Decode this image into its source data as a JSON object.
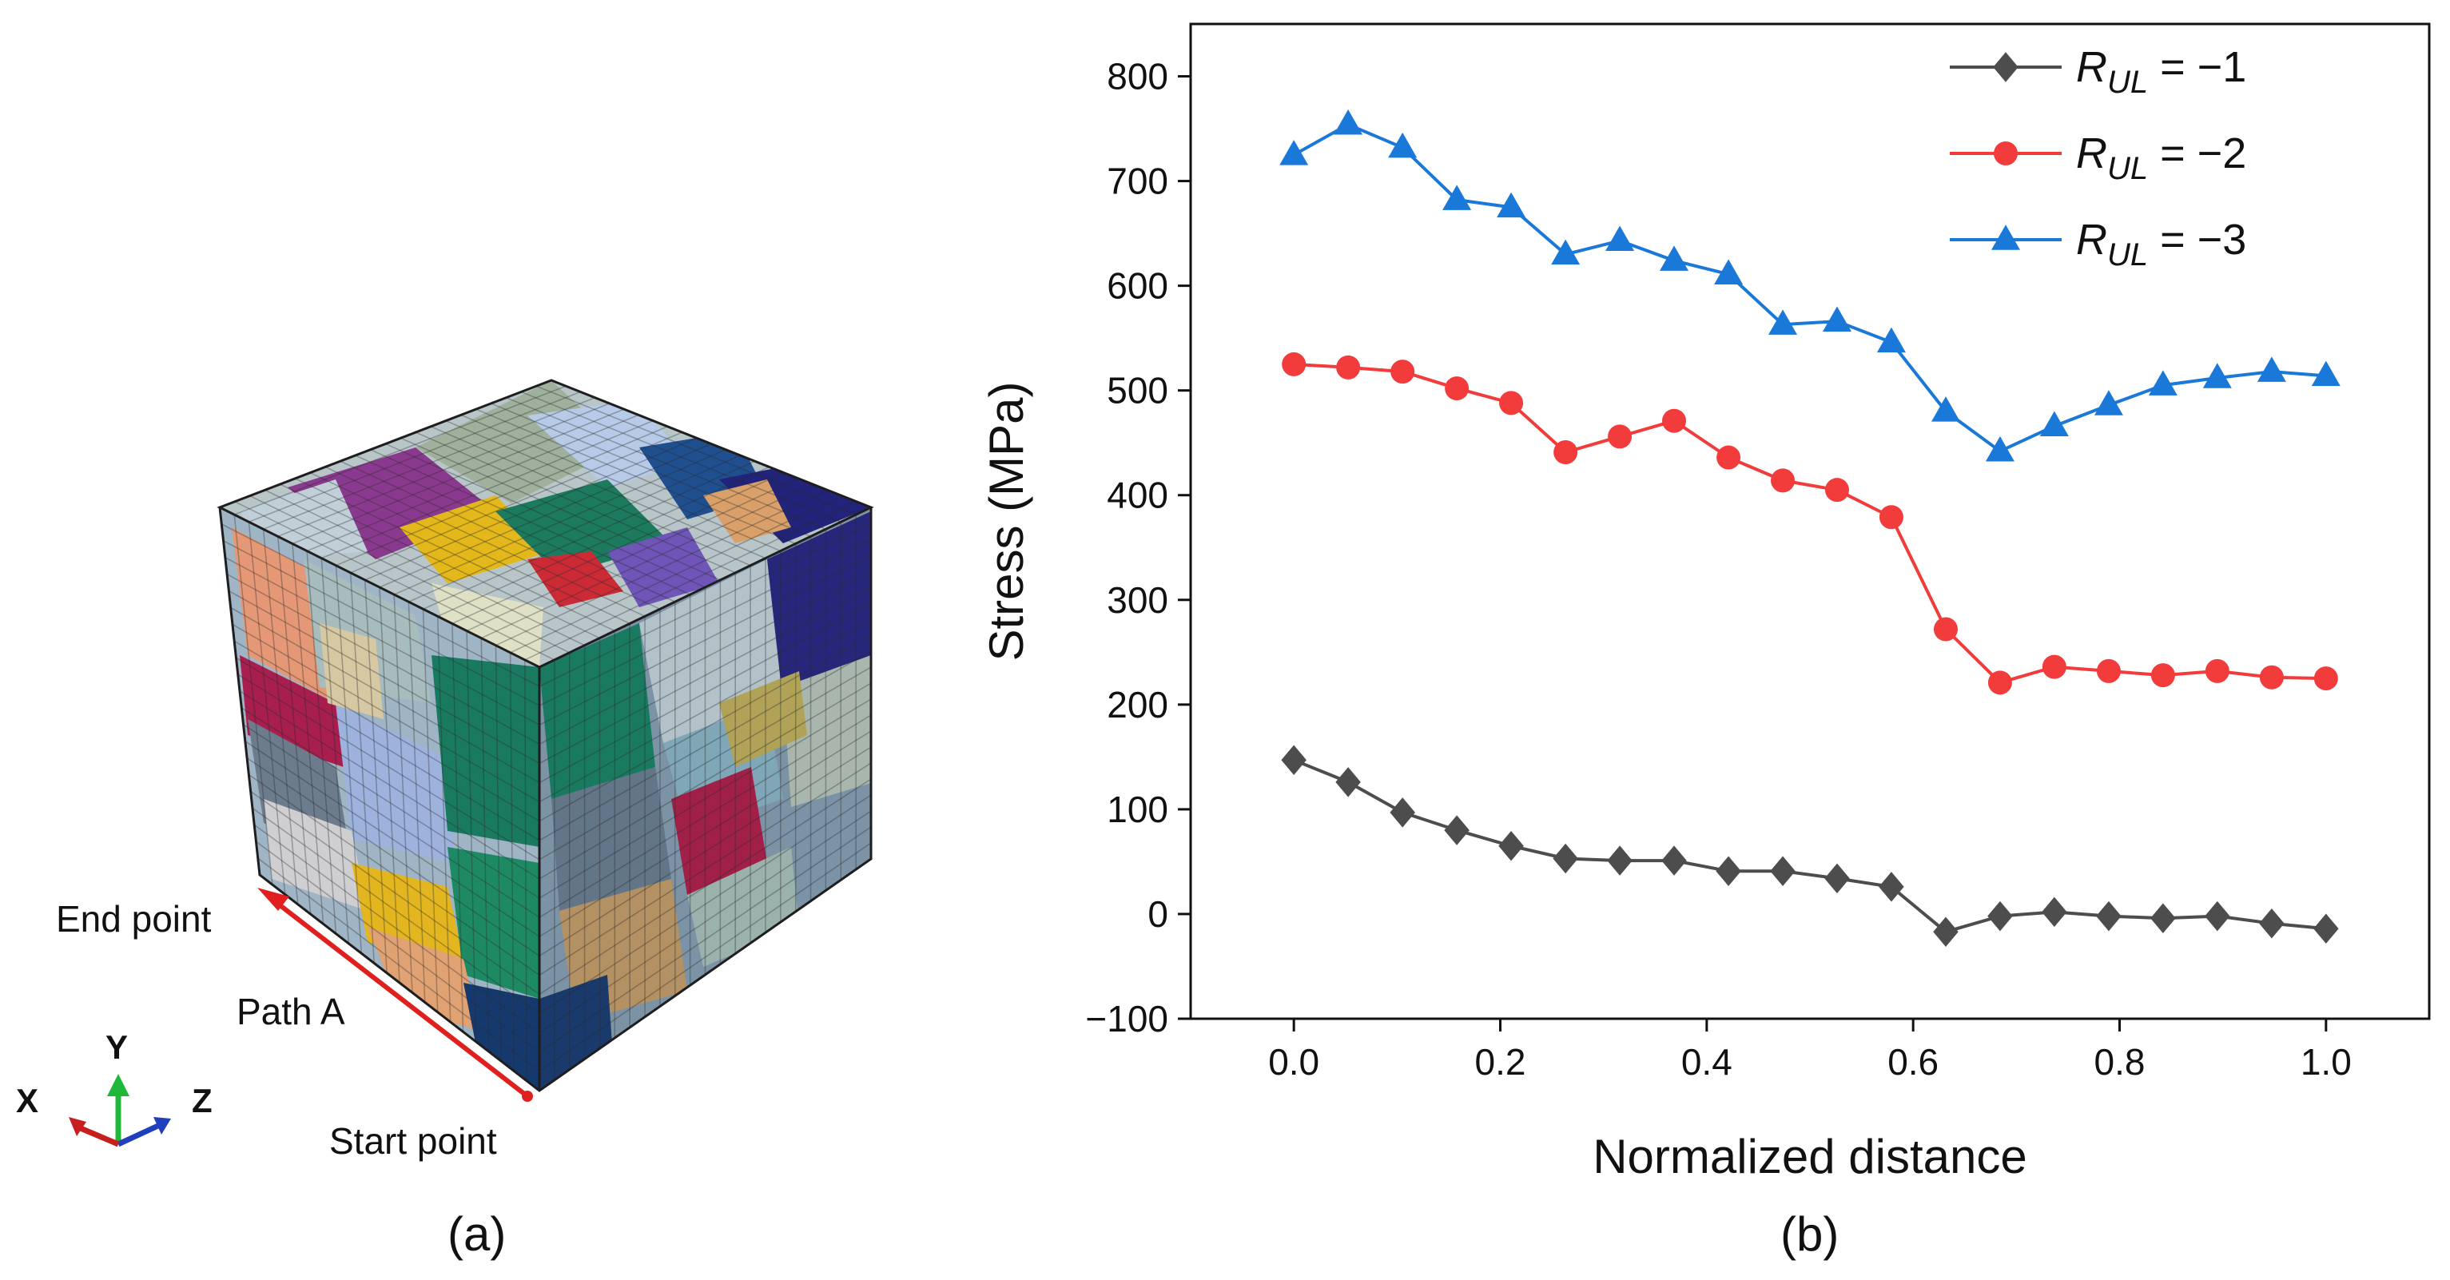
{
  "panel_a": {
    "label": "(a)",
    "end_point": "End point",
    "start_point": "Start point",
    "path": "Path A",
    "axes": {
      "x": "X",
      "y": "Y",
      "z": "Z"
    }
  },
  "panel_b": {
    "label": "(b)"
  },
  "chart_data": {
    "type": "line",
    "xlabel": "Normalized distance",
    "ylabel": "Stress (MPa)",
    "xlim": [
      -0.1,
      1.1
    ],
    "ylim": [
      -100,
      850
    ],
    "xticks": [
      0.0,
      0.2,
      0.4,
      0.6,
      0.8,
      1.0
    ],
    "xtick_labels": [
      "0.0",
      "0.2",
      "0.4",
      "0.6",
      "0.8",
      "1.0"
    ],
    "yticks": [
      -100,
      0,
      100,
      200,
      300,
      400,
      500,
      600,
      700,
      800
    ],
    "ytick_labels": [
      "−100",
      "0",
      "100",
      "200",
      "300",
      "400",
      "500",
      "600",
      "700",
      "800"
    ],
    "grid": false,
    "legend_position": "top-right",
    "x": [
      0.0,
      0.0526,
      0.1053,
      0.1579,
      0.2105,
      0.2632,
      0.3158,
      0.3684,
      0.4211,
      0.4737,
      0.5263,
      0.5789,
      0.6316,
      0.6842,
      0.7368,
      0.7895,
      0.8421,
      0.8947,
      0.9474,
      1.0
    ],
    "series": [
      {
        "name": "R_UL = −1",
        "legend_main": "R",
        "legend_sub": "UL",
        "legend_eq": " = −1",
        "color": "#4d4d4d",
        "marker": "diamond",
        "values": [
          147,
          126,
          97,
          80,
          65,
          53,
          51,
          51,
          41,
          41,
          34,
          26,
          -17,
          -2,
          2,
          -2,
          -4,
          -2,
          -9,
          -14
        ]
      },
      {
        "name": "R_UL = −2",
        "legend_main": "R",
        "legend_sub": "UL",
        "legend_eq": " = −2",
        "color": "#f23b3b",
        "marker": "circle",
        "values": [
          525,
          522,
          518,
          502,
          488,
          441,
          456,
          471,
          436,
          414,
          405,
          379,
          272,
          221,
          236,
          232,
          228,
          232,
          226,
          225
        ]
      },
      {
        "name": "R_UL = −3",
        "legend_main": "R",
        "legend_sub": "UL",
        "legend_eq": " = −3",
        "color": "#1a78d9",
        "marker": "triangle",
        "values": [
          725,
          754,
          732,
          682,
          675,
          630,
          643,
          624,
          611,
          563,
          566,
          546,
          480,
          442,
          466,
          486,
          505,
          512,
          518,
          514
        ]
      }
    ]
  }
}
